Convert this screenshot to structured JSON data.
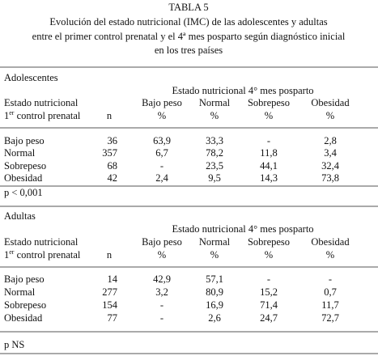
{
  "title": {
    "line1": "TABLA 5",
    "line2": "Evolución del estado nutricional  (IMC) de las adolescentes  y adultas",
    "line3": "entre  el primer control prenatal y el  4ª mes posparto según diagnóstico inicial",
    "line4": "en los tres países"
  },
  "sections": [
    {
      "name": "Adolescentes",
      "group_header": "Estado nutricional 4° mes posparto",
      "row_header": {
        "top": "Estado nutricional",
        "number": "1",
        "sup": "er",
        "rest": " control prenatal"
      },
      "n_header": "n",
      "columns": [
        {
          "label": "Bajo peso",
          "unit": "%"
        },
        {
          "label": "Normal",
          "unit": "%"
        },
        {
          "label": "Sobrepeso",
          "unit": "%"
        },
        {
          "label": "Obesidad",
          "unit": "%"
        }
      ],
      "rows": [
        [
          "Bajo peso",
          "36",
          "63,9",
          "33,3",
          "-",
          "2,8"
        ],
        [
          "Normal",
          "357",
          "6,7",
          "78,2",
          "11,8",
          "3,4"
        ],
        [
          "Sobrepeso",
          "68",
          "-",
          "23,5",
          "44,1",
          "32,4"
        ],
        [
          "Obesidad",
          "42",
          "2,4",
          "9,5",
          "14,3",
          "73,8"
        ]
      ],
      "note": "p < 0,001"
    },
    {
      "name": "Adultas",
      "group_header": "Estado nutricional 4° mes posparto",
      "row_header": {
        "top": "Estado nutricional",
        "number": "1",
        "sup": "er",
        "rest": " control prenatal"
      },
      "n_header": "n",
      "columns": [
        {
          "label": "Bajo peso",
          "unit": "%"
        },
        {
          "label": "Normal",
          "unit": "%"
        },
        {
          "label": "Sobrepeso",
          "unit": "%"
        },
        {
          "label": "Obesidad",
          "unit": "%"
        }
      ],
      "rows": [
        [
          "Bajo peso",
          "14",
          "42,9",
          "57,1",
          "-",
          "-"
        ],
        [
          "Normal",
          "277",
          "3,2",
          "80,9",
          "15,2",
          "0,7"
        ],
        [
          "Sobrepeso",
          "154",
          "-",
          "16,9",
          "71,4",
          "11,7"
        ],
        [
          "Obesidad",
          "77",
          "-",
          "2,6",
          "24,7",
          "72,7"
        ]
      ],
      "note": "p NS"
    }
  ]
}
